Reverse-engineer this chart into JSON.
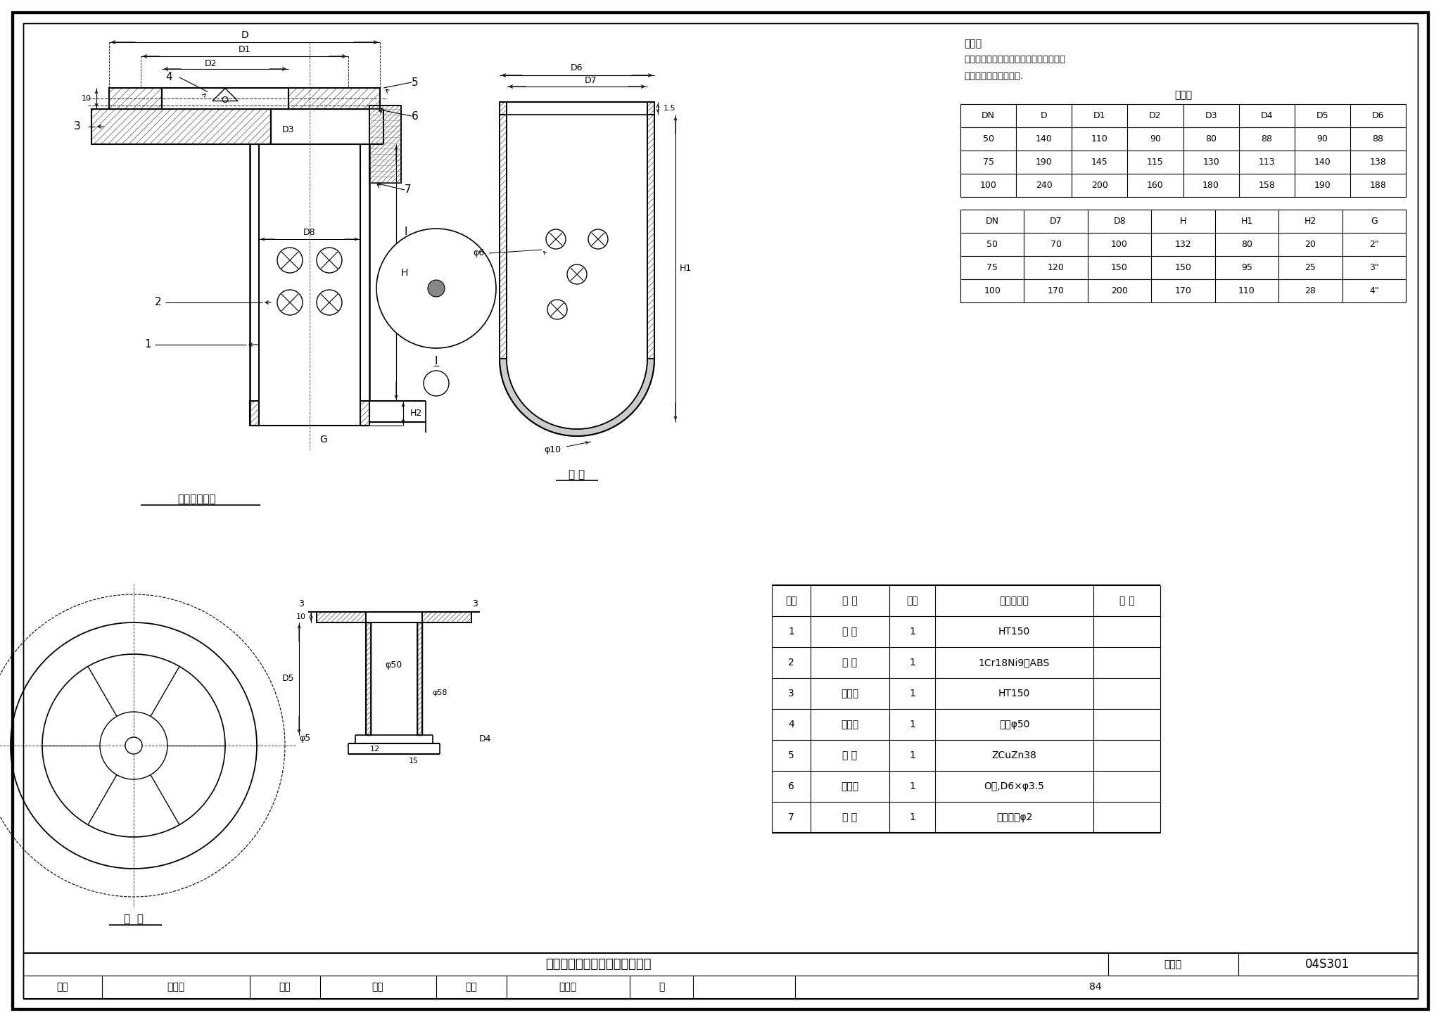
{
  "bg": "#ffffff",
  "lc": "#000000",
  "title": "脏物捕集器（二）构造及配件图",
  "fig_no": "04S301",
  "page": "84",
  "note1": "说明：",
  "note2": "本图系根据上海申利建筑构件制造有限公",
  "note3": "司提供的技术资料编制.",
  "t1_title": "尺寸表",
  "t1_h": [
    "DN",
    "D",
    "D1",
    "D2",
    "D3",
    "D4",
    "D5",
    "D6"
  ],
  "t1_r": [
    [
      "50",
      "140",
      "110",
      "90",
      "80",
      "88",
      "90",
      "88"
    ],
    [
      "75",
      "190",
      "145",
      "115",
      "130",
      "113",
      "140",
      "138"
    ],
    [
      "100",
      "240",
      "200",
      "160",
      "180",
      "158",
      "190",
      "188"
    ]
  ],
  "t2_h": [
    "DN",
    "D7",
    "D8",
    "H",
    "H1",
    "H2",
    "G"
  ],
  "t2_r": [
    [
      "50",
      "70",
      "100",
      "132",
      "80",
      "20",
      "2\""
    ],
    [
      "75",
      "120",
      "150",
      "150",
      "95",
      "25",
      "3\""
    ],
    [
      "100",
      "170",
      "200",
      "170",
      "110",
      "28",
      "4\""
    ]
  ],
  "pt_h": [
    "序号",
    "名 称",
    "数量",
    "材料或规格",
    "备 注"
  ],
  "pt_r": [
    [
      "7",
      "吊 拳",
      "1",
      "不锈钢丝φ2",
      ""
    ],
    [
      "6",
      "密封圈",
      "1",
      "O型,D6×φ3.5",
      ""
    ],
    [
      "5",
      "盖 板",
      "1",
      "ZCuZn38",
      ""
    ],
    [
      "4",
      "橡皮塞",
      "1",
      "橡胶φ50",
      ""
    ],
    [
      "3",
      "调节段",
      "1",
      "HT150",
      ""
    ],
    [
      "2",
      "网 篮",
      "1",
      "1Cr18Ni9或ABS",
      ""
    ],
    [
      "1",
      "本 体",
      "1",
      "HT150",
      ""
    ]
  ],
  "caption1": "捕集器构造图",
  "caption2": "网 篮",
  "caption3": "盖  板"
}
